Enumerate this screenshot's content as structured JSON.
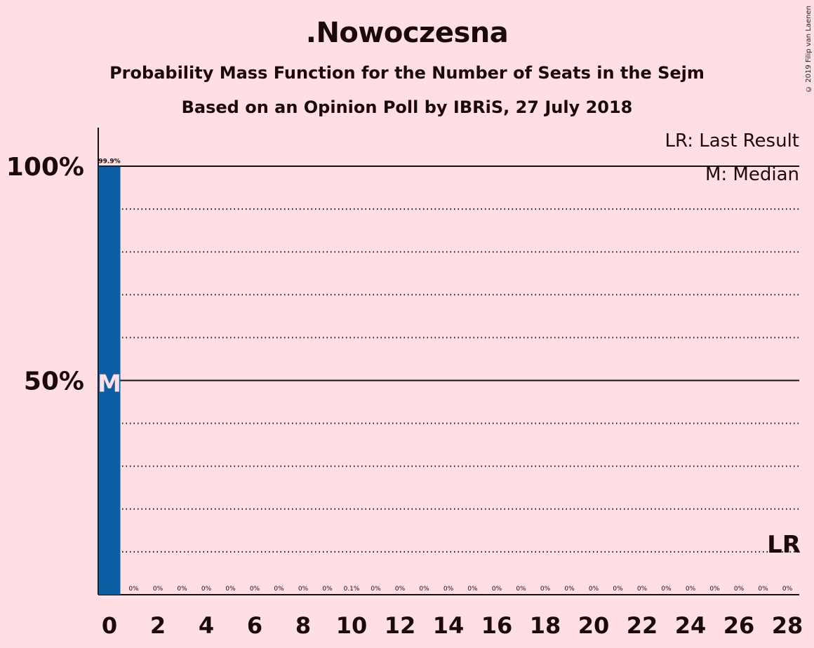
{
  "title": ".Nowoczesna",
  "subtitle": "Probability Mass Function for the Number of Seats in the Sejm",
  "subtitle2": "Based on an Opinion Poll by IBRiS, 27 July 2018",
  "copyright": "© 2019 Filip van Laenen",
  "legend": {
    "last_result": "LR: Last Result",
    "median": "M: Median"
  },
  "colors": {
    "background": "#FFDFE4",
    "bar": "#0B5FA5",
    "text": "#1a0a0a"
  },
  "chart_data": {
    "type": "bar",
    "x": [
      0,
      1,
      2,
      3,
      4,
      5,
      6,
      7,
      8,
      9,
      10,
      11,
      12,
      13,
      14,
      15,
      16,
      17,
      18,
      19,
      20,
      21,
      22,
      23,
      24,
      25,
      26,
      27,
      28
    ],
    "values": [
      99.9,
      0,
      0,
      0,
      0,
      0,
      0,
      0,
      0,
      0,
      0.1,
      0,
      0,
      0,
      0,
      0,
      0,
      0,
      0,
      0,
      0,
      0,
      0,
      0,
      0,
      0,
      0,
      0,
      0
    ],
    "value_labels": [
      "99.9%",
      "0%",
      "0%",
      "0%",
      "0%",
      "0%",
      "0%",
      "0%",
      "0%",
      "0%",
      "0.1%",
      "0%",
      "0%",
      "0%",
      "0%",
      "0%",
      "0%",
      "0%",
      "0%",
      "0%",
      "0%",
      "0%",
      "0%",
      "0%",
      "0%",
      "0%",
      "0%",
      "0%",
      "0%"
    ],
    "x_tick_labels": [
      "0",
      "2",
      "4",
      "6",
      "8",
      "10",
      "12",
      "14",
      "16",
      "18",
      "20",
      "22",
      "24",
      "26",
      "28"
    ],
    "y_tick_labels": [
      "50%",
      "100%"
    ],
    "ylim": [
      0,
      100
    ],
    "grid": "dotted every 10%, solid at 50% and 100%",
    "median": 0,
    "median_marker": "M",
    "last_result": 28,
    "last_result_marker": "LR",
    "legend_position": "top-right"
  }
}
